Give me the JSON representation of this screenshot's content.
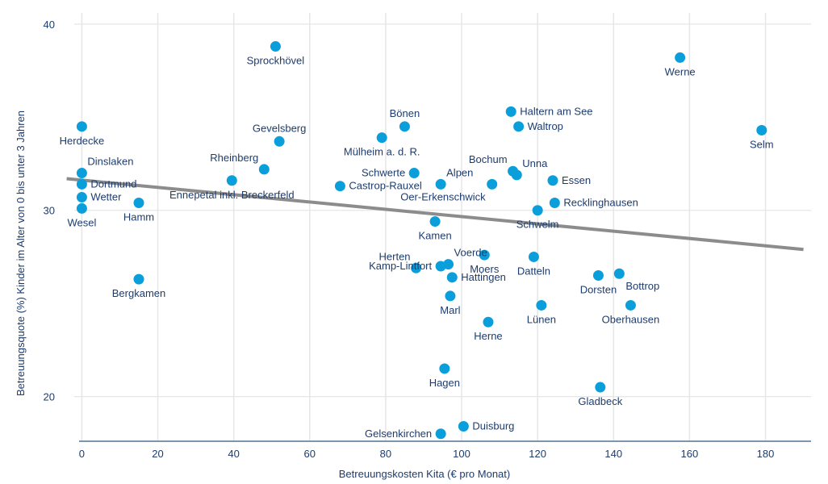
{
  "chart_data": {
    "type": "scatter",
    "xlabel": "Betreuungskosten Kita (€ pro Monat)",
    "ylabel": "Betreuungsquote (%) Kinder im Alter von 0 bis unter 3 Jahren",
    "xlim": [
      -2,
      192
    ],
    "ylim": [
      17.6,
      40.6
    ],
    "x_ticks": [
      0,
      20,
      40,
      60,
      80,
      100,
      120,
      140,
      160,
      180
    ],
    "y_ticks": [
      20,
      30,
      40
    ],
    "grid": "vertical",
    "colors": {
      "point": "#0a9fdb",
      "trend": "#8c8c8c",
      "text": "#1d3c6e",
      "grid": "#e6e6e6",
      "axis": "#7e96ad"
    },
    "trendline": {
      "x": [
        -4,
        190
      ],
      "y": [
        31.7,
        27.9
      ]
    },
    "points": [
      {
        "label": "Herdecke",
        "x": 0,
        "y": 34.5,
        "pos": "below"
      },
      {
        "label": "Dinslaken",
        "x": 0,
        "y": 32.0,
        "pos": "above-right"
      },
      {
        "label": "Dortmund",
        "x": 0,
        "y": 31.4,
        "pos": "right"
      },
      {
        "label": "Wetter",
        "x": 0,
        "y": 30.7,
        "pos": "right"
      },
      {
        "label": "Wesel",
        "x": 0,
        "y": 30.1,
        "pos": "below"
      },
      {
        "label": "Hamm",
        "x": 15,
        "y": 30.4,
        "pos": "below"
      },
      {
        "label": "Bergkamen",
        "x": 15,
        "y": 26.3,
        "pos": "below"
      },
      {
        "label": "Ennepetal inkl. Breckerfeld",
        "x": 39.5,
        "y": 31.6,
        "pos": "below"
      },
      {
        "label": "Rheinberg",
        "x": 48,
        "y": 32.2,
        "pos": "above-left"
      },
      {
        "label": "Sprockhövel",
        "x": 51,
        "y": 38.8,
        "pos": "below"
      },
      {
        "label": "Gevelsberg",
        "x": 52,
        "y": 33.7,
        "pos": "above"
      },
      {
        "label": "Castrop-Rauxel",
        "x": 68,
        "y": 31.3,
        "pos": "right"
      },
      {
        "label": "Mülheim a. d. R.",
        "x": 79,
        "y": 33.9,
        "pos": "below"
      },
      {
        "label": "Bönen",
        "x": 85,
        "y": 34.5,
        "pos": "above"
      },
      {
        "label": "Schwerte",
        "x": 87.5,
        "y": 32.0,
        "pos": "left"
      },
      {
        "label": "Herten",
        "x": 88,
        "y": 26.9,
        "pos": "above-left"
      },
      {
        "label": "Alpen",
        "x": 94.5,
        "y": 31.4,
        "pos": "above-right"
      },
      {
        "label": "Kamen",
        "x": 93,
        "y": 29.4,
        "pos": "below"
      },
      {
        "label": "Voerde",
        "x": 96.5,
        "y": 27.1,
        "pos": "above-right"
      },
      {
        "label": "Kamp-Lintfort",
        "x": 94.5,
        "y": 27.0,
        "pos": "left"
      },
      {
        "label": "Hattingen",
        "x": 97.5,
        "y": 26.4,
        "pos": "right"
      },
      {
        "label": "Marl",
        "x": 97,
        "y": 25.4,
        "pos": "below"
      },
      {
        "label": "Hagen",
        "x": 95.5,
        "y": 21.5,
        "pos": "below"
      },
      {
        "label": "Gelsenkirchen",
        "x": 94.5,
        "y": 18.0,
        "pos": "left"
      },
      {
        "label": "Duisburg",
        "x": 100.5,
        "y": 18.4,
        "pos": "right"
      },
      {
        "label": "Moers",
        "x": 106,
        "y": 27.6,
        "pos": "below"
      },
      {
        "label": "Herne",
        "x": 107,
        "y": 24.0,
        "pos": "below"
      },
      {
        "label": "Oer-Erkenschwick",
        "x": 108,
        "y": 31.4,
        "pos": "below-left"
      },
      {
        "label": "Bochum",
        "x": 113.5,
        "y": 32.1,
        "pos": "above-left"
      },
      {
        "label": "Unna",
        "x": 114.5,
        "y": 31.9,
        "pos": "above-right"
      },
      {
        "label": "Haltern am See",
        "x": 113,
        "y": 35.3,
        "pos": "right"
      },
      {
        "label": "Waltrop",
        "x": 115,
        "y": 34.5,
        "pos": "right"
      },
      {
        "label": "Datteln",
        "x": 119,
        "y": 27.5,
        "pos": "below"
      },
      {
        "label": "Schwelm",
        "x": 120,
        "y": 30.0,
        "pos": "below"
      },
      {
        "label": "Lünen",
        "x": 121,
        "y": 24.9,
        "pos": "below"
      },
      {
        "label": "Essen",
        "x": 124,
        "y": 31.6,
        "pos": "right"
      },
      {
        "label": "Recklinghausen",
        "x": 124.5,
        "y": 30.4,
        "pos": "right"
      },
      {
        "label": "Gladbeck",
        "x": 136.5,
        "y": 20.5,
        "pos": "below"
      },
      {
        "label": "Dorsten",
        "x": 136,
        "y": 26.5,
        "pos": "below"
      },
      {
        "label": "Bottrop",
        "x": 141.5,
        "y": 26.6,
        "pos": "below-right"
      },
      {
        "label": "Oberhausen",
        "x": 144.5,
        "y": 24.9,
        "pos": "below"
      },
      {
        "label": "Werne",
        "x": 157.5,
        "y": 38.2,
        "pos": "below"
      },
      {
        "label": "Selm",
        "x": 179,
        "y": 34.3,
        "pos": "below"
      }
    ]
  }
}
